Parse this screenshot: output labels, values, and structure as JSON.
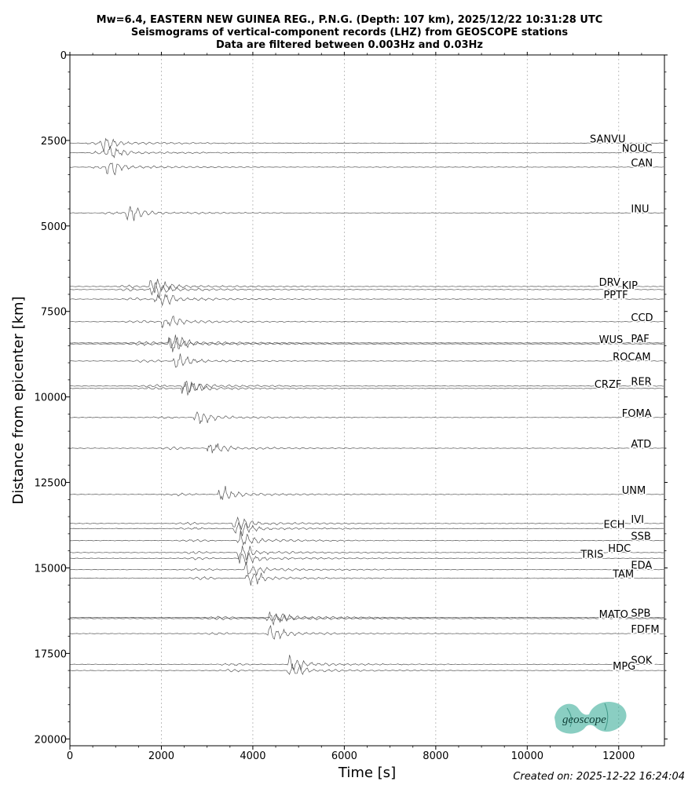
{
  "title": {
    "line1": "Mw=6.4, EASTERN NEW GUINEA REG., P.N.G. (Depth: 107 km), 2025/12/22 10:31:28 UTC",
    "line2": "Seismograms of vertical-component records (LHZ) from GEOSCOPE stations",
    "line3": "Data are filtered between 0.003Hz and 0.03Hz"
  },
  "footer": {
    "created": "Created on: 2025-12-22 16:24:04"
  },
  "logo": {
    "text": "geoscope",
    "color": "#2aa58f"
  },
  "chart_data": {
    "type": "line",
    "xlabel": "Time [s]",
    "ylabel": "Distance from epicenter [km]",
    "xlim": [
      0,
      13000
    ],
    "ylim": [
      20200,
      0
    ],
    "x_ticks": [
      0,
      2000,
      4000,
      6000,
      8000,
      10000,
      12000
    ],
    "x_tick_labels": [
      "0",
      "2000",
      "4000",
      "6000",
      "8000",
      "10000",
      "12000"
    ],
    "y_ticks": [
      0,
      2500,
      5000,
      7500,
      10000,
      12500,
      15000,
      17500,
      20000
    ],
    "y_tick_labels": [
      "0",
      "2500",
      "5000",
      "7500",
      "10000",
      "12500",
      "15000",
      "17500",
      "20000"
    ],
    "grid_x": true,
    "grid_y": false,
    "trace_color": "#555555",
    "stations": [
      {
        "name": "SANVU",
        "distance": 2580,
        "arrival": 700,
        "label_end": 11300
      },
      {
        "name": "NOUC",
        "distance": 2860,
        "arrival": 780,
        "label_end": 12000
      },
      {
        "name": "CAN",
        "distance": 3280,
        "arrival": 850,
        "label_end": 12200
      },
      {
        "name": "INU",
        "distance": 4620,
        "arrival": 1250,
        "label_end": 12200
      },
      {
        "name": "DRV",
        "distance": 6770,
        "arrival": 1800,
        "label_end": 11500
      },
      {
        "name": "KIP",
        "distance": 6860,
        "arrival": 1800,
        "label_end": 12000
      },
      {
        "name": "PPTF",
        "distance": 7140,
        "arrival": 1900,
        "label_end": 11600
      },
      {
        "name": "CCD",
        "distance": 7800,
        "arrival": 2050,
        "label_end": 12200
      },
      {
        "name": "WUS",
        "distance": 8450,
        "arrival": 2200,
        "label_end": 11500
      },
      {
        "name": "PAF",
        "distance": 8420,
        "arrival": 2200,
        "label_end": 12200
      },
      {
        "name": "ROCAM",
        "distance": 8950,
        "arrival": 2300,
        "label_end": 11800
      },
      {
        "name": "CRZF",
        "distance": 9750,
        "arrival": 2500,
        "label_end": 11400
      },
      {
        "name": "RER",
        "distance": 9680,
        "arrival": 2500,
        "label_end": 12200
      },
      {
        "name": "FOMA",
        "distance": 10600,
        "arrival": 2750,
        "label_end": 12000
      },
      {
        "name": "ATD",
        "distance": 11500,
        "arrival": 3050,
        "label_end": 12200
      },
      {
        "name": "UNM",
        "distance": 12850,
        "arrival": 3300,
        "label_end": 12000
      },
      {
        "name": "IVI",
        "distance": 13700,
        "arrival": 3600,
        "label_end": 12200
      },
      {
        "name": "ECH",
        "distance": 13850,
        "arrival": 3600,
        "label_end": 11600
      },
      {
        "name": "SSB",
        "distance": 14200,
        "arrival": 3700,
        "label_end": 12200
      },
      {
        "name": "HDC",
        "distance": 14550,
        "arrival": 3700,
        "label_end": 11700
      },
      {
        "name": "TRIS",
        "distance": 14720,
        "arrival": 3750,
        "label_end": 11100
      },
      {
        "name": "EDA",
        "distance": 15050,
        "arrival": 3850,
        "label_end": 12200
      },
      {
        "name": "TAM",
        "distance": 15300,
        "arrival": 3900,
        "label_end": 11800
      },
      {
        "name": "SPB",
        "distance": 16450,
        "arrival": 4400,
        "label_end": 12200
      },
      {
        "name": "MATO",
        "distance": 16480,
        "arrival": 4350,
        "label_end": 11500
      },
      {
        "name": "FDFM",
        "distance": 16920,
        "arrival": 4350,
        "label_end": 12200
      },
      {
        "name": "SOK",
        "distance": 17820,
        "arrival": 4800,
        "label_end": 12200
      },
      {
        "name": "MPG",
        "distance": 18000,
        "arrival": 4800,
        "label_end": 11800
      }
    ]
  }
}
